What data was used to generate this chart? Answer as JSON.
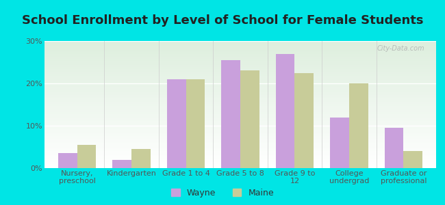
{
  "title": "School Enrollment by Level of School for Female Students",
  "categories": [
    "Nursery,\npreschool",
    "Kindergarten",
    "Grade 1 to 4",
    "Grade 5 to 8",
    "Grade 9 to\n12",
    "College\nundergrad",
    "Graduate or\nprofessional"
  ],
  "wayne_values": [
    3.5,
    2.0,
    21.0,
    25.5,
    27.0,
    12.0,
    9.5
  ],
  "maine_values": [
    5.5,
    4.5,
    21.0,
    23.0,
    22.5,
    20.0,
    4.0
  ],
  "wayne_color": "#c9a0dc",
  "maine_color": "#c8cc99",
  "background_color": "#00e5e5",
  "grad_color_top": "#ddeedd",
  "grad_color_bottom": "#ffffff",
  "ylim": [
    0,
    30
  ],
  "yticks": [
    0,
    10,
    20,
    30
  ],
  "ytick_labels": [
    "0%",
    "10%",
    "20%",
    "30%"
  ],
  "title_fontsize": 13,
  "tick_fontsize": 8,
  "legend_fontsize": 9,
  "bar_width": 0.35,
  "watermark": "City-Data.com"
}
